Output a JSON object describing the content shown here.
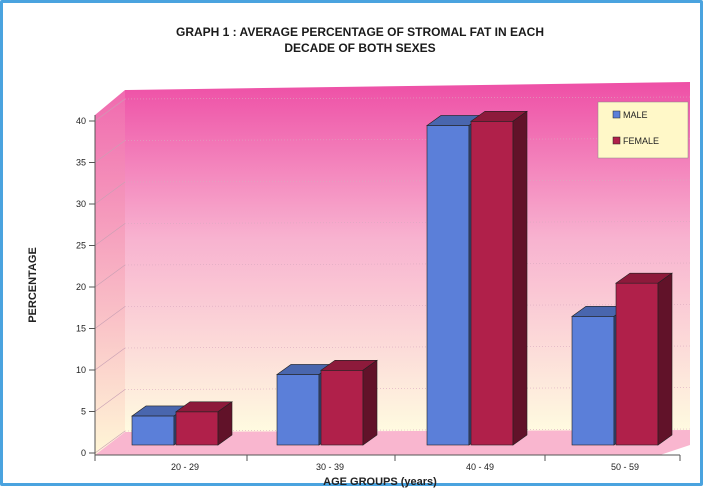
{
  "chart_data": {
    "type": "bar",
    "title": "GRAPH 1 : AVERAGE PERCENTAGE OF STROMAL FAT IN EACH DECADE OF BOTH SEXES",
    "title_lines": [
      "GRAPH 1 : AVERAGE PERCENTAGE OF STROMAL FAT IN EACH",
      "DECADE OF BOTH SEXES"
    ],
    "xlabel": "AGE GROUPS (years)",
    "ylabel": "PERCENTAGE",
    "categories": [
      "20 - 29",
      "30 - 39",
      "40 - 49",
      "50 - 59"
    ],
    "yticks": [
      "0",
      "5",
      "10",
      "15",
      "20",
      "25",
      "30",
      "35",
      "40"
    ],
    "ylim": [
      0,
      40
    ],
    "grid": true,
    "legend_position": "top-right",
    "series": [
      {
        "name": "MALE",
        "values": [
          3.5,
          8.5,
          38.5,
          15.5
        ],
        "color": "#5b7fd9"
      },
      {
        "name": "FEMALE",
        "values": [
          4,
          9,
          39,
          19.5
        ],
        "color": "#b0204a"
      }
    ]
  },
  "colors": {
    "wall_top": "#ee4fa6",
    "wall_bottom": "#fffbe0",
    "floor": "#f9b6cf"
  }
}
